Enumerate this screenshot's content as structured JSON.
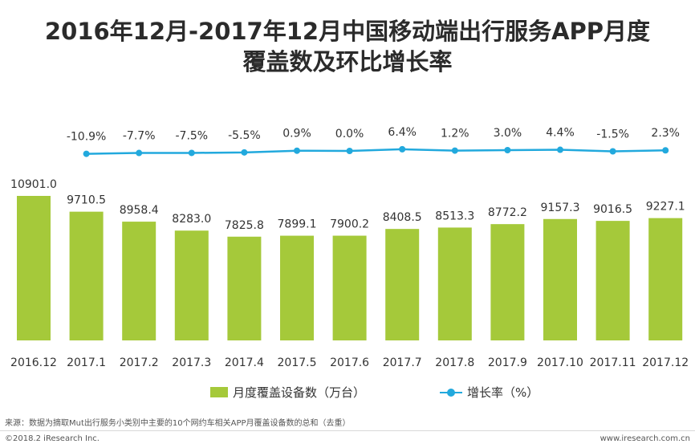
{
  "title_line1": "2016年12月-2017年12月中国移动端出行服务APP月度",
  "title_line2": "覆盖数及环比增长率",
  "chart_data": {
    "type": "bar",
    "categories": [
      "2016.12",
      "2017.1",
      "2017.2",
      "2017.3",
      "2017.4",
      "2017.5",
      "2017.6",
      "2017.7",
      "2017.8",
      "2017.9",
      "2017.10",
      "2017.11",
      "2017.12"
    ],
    "series": [
      {
        "name": "月度覆盖设备数（万台）",
        "type": "bar",
        "values": [
          10901.0,
          9710.5,
          8958.4,
          8283.0,
          7825.8,
          7899.1,
          7900.2,
          8408.5,
          8513.3,
          8772.2,
          9157.3,
          9016.5,
          9227.1
        ],
        "labels": [
          "10901.0",
          "9710.5",
          "8958.4",
          "8283.0",
          "7825.8",
          "7899.1",
          "7900.2",
          "8408.5",
          "8513.3",
          "8772.2",
          "9157.3",
          "9016.5",
          "9227.1"
        ]
      },
      {
        "name": "增长率（%）",
        "type": "line",
        "values": [
          -10.9,
          -7.7,
          -7.5,
          -5.5,
          0.9,
          0.0,
          6.4,
          1.2,
          3.0,
          4.4,
          -1.5,
          2.3
        ],
        "x": [
          "2017.1",
          "2017.2",
          "2017.3",
          "2017.4",
          "2017.5",
          "2017.6",
          "2017.7",
          "2017.8",
          "2017.9",
          "2017.10",
          "2017.11",
          "2017.12"
        ],
        "labels": [
          "-10.9%",
          "-7.7%",
          "-7.5%",
          "-5.5%",
          "0.9%",
          "0.0%",
          "6.4%",
          "1.2%",
          "3.0%",
          "4.4%",
          "-1.5%",
          "2.3%"
        ]
      }
    ],
    "ylim": [
      0,
      11000
    ],
    "title": "2016年12月-2017年12月中国移动端出行服务APP月度覆盖数及环比增长率",
    "xlabel": "",
    "ylabel": ""
  },
  "legend": {
    "bar_label": "月度覆盖设备数（万台）",
    "line_label": "增长率（%）"
  },
  "source": "来源：数据为摘取Mut出行服务小类别中主要的10个网约车相关APP月覆盖设备数的总和（去重）",
  "copyright": "©2018.2 iResearch Inc.",
  "website": "www.iresearch.com.cn",
  "colors": {
    "bar": "#a5c93a",
    "line": "#22a9dd"
  }
}
